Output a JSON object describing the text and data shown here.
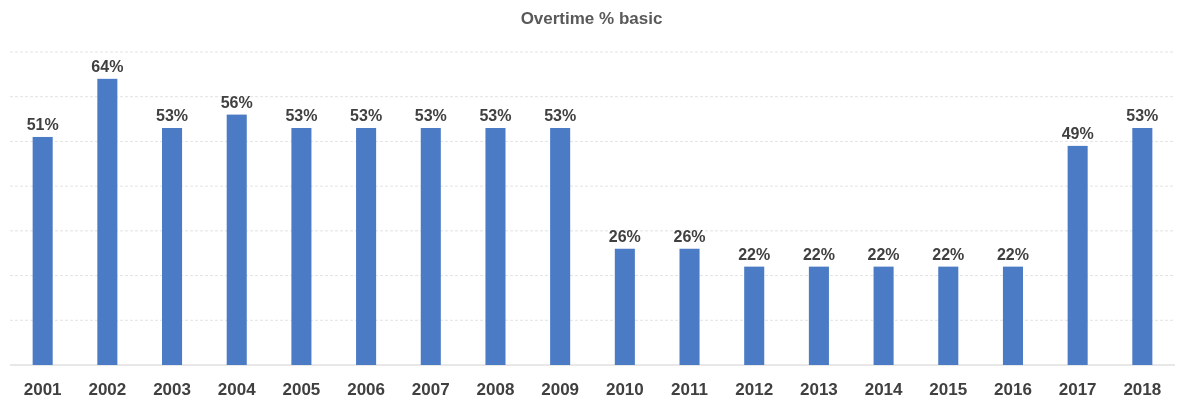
{
  "chart_data": {
    "type": "bar",
    "title": "Overtime % basic",
    "categories": [
      "2001",
      "2002",
      "2003",
      "2004",
      "2005",
      "2006",
      "2007",
      "2008",
      "2009",
      "2010",
      "2011",
      "2012",
      "2013",
      "2014",
      "2015",
      "2016",
      "2017",
      "2018"
    ],
    "values": [
      51,
      64,
      53,
      56,
      53,
      53,
      53,
      53,
      53,
      26,
      26,
      22,
      22,
      22,
      22,
      22,
      49,
      53
    ],
    "value_labels": [
      "51%",
      "64%",
      "53%",
      "56%",
      "53%",
      "53%",
      "53%",
      "53%",
      "53%",
      "26%",
      "26%",
      "22%",
      "22%",
      "22%",
      "22%",
      "22%",
      "49%",
      "53%"
    ],
    "color": "#4a7bc4",
    "ylim": [
      0,
      70
    ],
    "yticks": [
      {
        "value": 0,
        "label": null
      },
      {
        "value": 10,
        "label": null
      },
      {
        "value": 20,
        "label": null
      },
      {
        "value": 30,
        "label": null
      },
      {
        "value": 40,
        "label": null
      },
      {
        "value": 50,
        "label": null
      },
      {
        "value": 60,
        "label": null
      },
      {
        "value": 70,
        "label": null
      }
    ],
    "grid": "y",
    "tick_labels": "x"
  }
}
